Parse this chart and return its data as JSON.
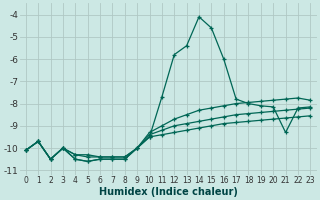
{
  "xlabel": "Humidex (Indice chaleur)",
  "background_color": "#cce8e4",
  "grid_color": "#b0c8c4",
  "line_color": "#006655",
  "xlim": [
    -0.5,
    23.5
  ],
  "ylim": [
    -11.2,
    -3.5
  ],
  "yticks": [
    -4,
    -5,
    -6,
    -7,
    -8,
    -9,
    -10,
    -11
  ],
  "xticks": [
    0,
    1,
    2,
    3,
    4,
    5,
    6,
    7,
    8,
    9,
    10,
    11,
    12,
    13,
    14,
    15,
    16,
    17,
    18,
    19,
    20,
    21,
    22,
    23
  ],
  "series": [
    {
      "x": [
        0,
        1,
        2,
        3,
        4,
        5,
        6,
        7,
        8,
        9,
        10,
        11,
        12,
        13,
        14,
        15,
        16,
        17,
        18,
        19,
        20,
        21,
        22,
        23
      ],
      "y": [
        -10.1,
        -9.7,
        -10.5,
        -10.0,
        -10.5,
        -10.6,
        -10.5,
        -10.5,
        -10.5,
        -10.0,
        -9.5,
        -7.7,
        -5.8,
        -5.4,
        -4.1,
        -4.6,
        -6.0,
        -7.8,
        -8.0,
        -8.1,
        -8.15,
        -9.3,
        -8.2,
        -8.15
      ]
    },
    {
      "x": [
        0,
        1,
        2,
        3,
        4,
        5,
        6,
        7,
        8,
        9,
        10,
        11,
        12,
        13,
        14,
        15,
        16,
        17,
        18,
        19,
        20,
        21,
        22,
        23
      ],
      "y": [
        -10.1,
        -9.7,
        -10.5,
        -10.0,
        -10.5,
        -10.6,
        -10.5,
        -10.5,
        -10.5,
        -10.0,
        -9.5,
        -9.4,
        -9.3,
        -9.2,
        -9.1,
        -9.0,
        -8.9,
        -8.85,
        -8.8,
        -8.75,
        -8.7,
        -8.65,
        -8.6,
        -8.55
      ]
    },
    {
      "x": [
        0,
        1,
        2,
        3,
        4,
        5,
        6,
        7,
        8,
        9,
        10,
        11,
        12,
        13,
        14,
        15,
        16,
        17,
        18,
        19,
        20,
        21,
        22,
        23
      ],
      "y": [
        -10.1,
        -9.7,
        -10.5,
        -10.0,
        -10.3,
        -10.4,
        -10.4,
        -10.4,
        -10.4,
        -10.0,
        -9.4,
        -9.2,
        -9.0,
        -8.9,
        -8.8,
        -8.7,
        -8.6,
        -8.5,
        -8.45,
        -8.4,
        -8.35,
        -8.3,
        -8.25,
        -8.2
      ]
    },
    {
      "x": [
        0,
        1,
        2,
        3,
        4,
        5,
        6,
        7,
        8,
        9,
        10,
        11,
        12,
        13,
        14,
        15,
        16,
        17,
        18,
        19,
        20,
        21,
        22,
        23
      ],
      "y": [
        -10.1,
        -9.7,
        -10.5,
        -10.0,
        -10.3,
        -10.3,
        -10.4,
        -10.4,
        -10.4,
        -10.0,
        -9.3,
        -9.0,
        -8.7,
        -8.5,
        -8.3,
        -8.2,
        -8.1,
        -8.0,
        -7.95,
        -7.9,
        -7.85,
        -7.8,
        -7.75,
        -7.85
      ]
    }
  ]
}
